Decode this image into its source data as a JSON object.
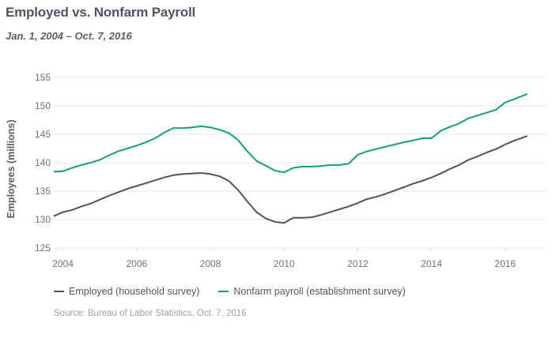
{
  "title": "Employed vs. Nonfarm Payroll",
  "subtitle": "Jan. 1, 2004 – Oct. 7, 2016",
  "source": "Source: Bureau of Labor Statistics, Oct. 7, 2016",
  "colors": {
    "employed": "#4a5565",
    "payroll": "#12a276",
    "grid": "#e4e6e9",
    "axis_text": "#6b737c"
  },
  "chart_data": {
    "type": "line",
    "title": "Employed vs. Nonfarm Payroll",
    "subtitle": "Jan. 1, 2004 – Oct. 7, 2016",
    "xlabel": "",
    "ylabel": "Employees (millions)",
    "xlim": [
      2003.75,
      2017.1
    ],
    "ylim": [
      125,
      155
    ],
    "yticks": [
      125,
      130,
      135,
      140,
      145,
      150,
      155
    ],
    "xticks": [
      2004,
      2006,
      2008,
      2010,
      2012,
      2014,
      2016
    ],
    "grid": true,
    "legend_position": "bottom",
    "series": [
      {
        "name": "Employed (household survey)",
        "color": "#4a5565",
        "x": [
          2003.75,
          2004.0,
          2004.25,
          2004.5,
          2004.75,
          2005.0,
          2005.25,
          2005.5,
          2005.75,
          2006.0,
          2006.25,
          2006.5,
          2006.75,
          2007.0,
          2007.25,
          2007.5,
          2007.75,
          2008.0,
          2008.25,
          2008.5,
          2008.75,
          2009.0,
          2009.25,
          2009.5,
          2009.75,
          2010.0,
          2010.25,
          2010.5,
          2010.75,
          2011.0,
          2011.25,
          2011.5,
          2011.75,
          2012.0,
          2012.25,
          2012.5,
          2012.75,
          2013.0,
          2013.25,
          2013.5,
          2013.75,
          2014.0,
          2014.25,
          2014.5,
          2014.75,
          2015.0,
          2015.25,
          2015.5,
          2015.75,
          2016.0,
          2016.25,
          2016.6
        ],
        "values": [
          130.6,
          131.3,
          131.7,
          132.3,
          132.8,
          133.5,
          134.2,
          134.8,
          135.4,
          135.9,
          136.4,
          136.9,
          137.4,
          137.8,
          138.0,
          138.1,
          138.2,
          138.0,
          137.6,
          136.8,
          135.2,
          133.2,
          131.3,
          130.2,
          129.6,
          129.4,
          130.3,
          130.3,
          130.4,
          130.8,
          131.3,
          131.8,
          132.3,
          132.9,
          133.6,
          134.0,
          134.5,
          135.1,
          135.7,
          136.3,
          136.8,
          137.4,
          138.1,
          138.9,
          139.6,
          140.5,
          141.1,
          141.8,
          142.4,
          143.2,
          143.9,
          144.7
        ]
      },
      {
        "name": "Nonfarm payroll (establishment survey)",
        "color": "#12a276",
        "x": [
          2003.75,
          2004.0,
          2004.25,
          2004.5,
          2004.75,
          2005.0,
          2005.25,
          2005.5,
          2005.75,
          2006.0,
          2006.25,
          2006.5,
          2006.75,
          2007.0,
          2007.25,
          2007.5,
          2007.75,
          2008.0,
          2008.25,
          2008.5,
          2008.75,
          2009.0,
          2009.25,
          2009.5,
          2009.75,
          2010.0,
          2010.25,
          2010.5,
          2010.75,
          2011.0,
          2011.25,
          2011.5,
          2011.75,
          2012.0,
          2012.25,
          2012.5,
          2012.75,
          2013.0,
          2013.25,
          2013.5,
          2013.75,
          2014.0,
          2014.25,
          2014.5,
          2014.75,
          2015.0,
          2015.25,
          2015.5,
          2015.75,
          2016.0,
          2016.25,
          2016.6
        ],
        "values": [
          138.4,
          138.5,
          139.1,
          139.6,
          140.0,
          140.5,
          141.3,
          142.0,
          142.5,
          143.0,
          143.6,
          144.3,
          145.3,
          146.1,
          146.1,
          146.2,
          146.4,
          146.2,
          145.8,
          145.2,
          144.0,
          142.0,
          140.3,
          139.5,
          138.6,
          138.3,
          139.1,
          139.3,
          139.3,
          139.4,
          139.6,
          139.6,
          139.8,
          141.4,
          142.0,
          142.4,
          142.8,
          143.2,
          143.6,
          143.9,
          144.3,
          144.3,
          145.6,
          146.3,
          146.9,
          147.8,
          148.3,
          148.8,
          149.3,
          150.6,
          151.2,
          152.1
        ]
      }
    ]
  }
}
